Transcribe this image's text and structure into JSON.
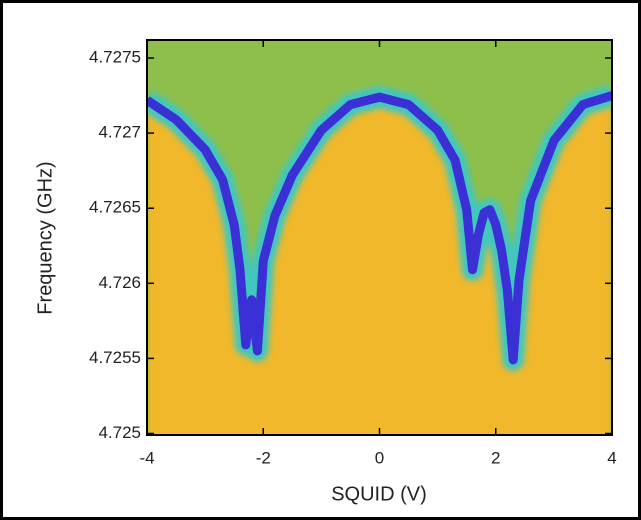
{
  "chart_data": {
    "type": "line",
    "x_label": "SQUID (V)",
    "y_label": "Frequency (GHz)",
    "xlim": [
      -4,
      4
    ],
    "xticks": [
      -4,
      -2,
      0,
      2,
      4
    ],
    "ylim": [
      4.72499,
      4.72762
    ],
    "yticks": [
      4.725,
      4.7255,
      4.726,
      4.7265,
      4.727,
      4.7275
    ],
    "series": [
      {
        "color": "#3b2fd6",
        "x": [
          -4,
          -3.5,
          -3,
          -2.7,
          -2.5,
          -2.4,
          -2.3,
          -2.2,
          -2.1,
          -2.0,
          -1.8,
          -1.5,
          -1,
          -0.5,
          0,
          0.5,
          1,
          1.3,
          1.5,
          1.6,
          1.7,
          1.8,
          1.9,
          2.0,
          2.1,
          2.2,
          2.3,
          2.4,
          2.6,
          3,
          3.5,
          4
        ],
        "values": [
          4.72722,
          4.72709,
          4.72689,
          4.72669,
          4.72639,
          4.72609,
          4.72559,
          4.72589,
          4.72555,
          4.72615,
          4.72645,
          4.72672,
          4.72702,
          4.72719,
          4.72724,
          4.72719,
          4.72702,
          4.72682,
          4.72649,
          4.72609,
          4.72632,
          4.72647,
          4.72649,
          4.72639,
          4.72622,
          4.72595,
          4.72549,
          4.72602,
          4.72655,
          4.72695,
          4.72719,
          4.72725
        ]
      }
    ]
  }
}
